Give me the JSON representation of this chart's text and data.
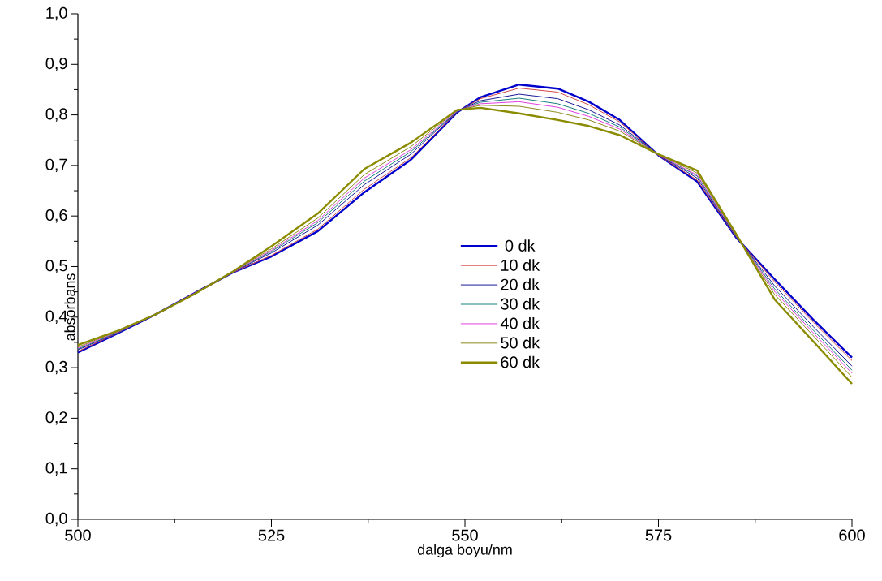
{
  "chart_data": {
    "type": "line",
    "xlabel": "dalga boyu/nm",
    "ylabel": "absorbans",
    "x": [
      500,
      505,
      510,
      515,
      520,
      525,
      531,
      537,
      543,
      549,
      552,
      557,
      562,
      566,
      570,
      575,
      580,
      585,
      590,
      595,
      600
    ],
    "xlim": [
      500,
      600
    ],
    "xticks": [
      500,
      525,
      550,
      575,
      600
    ],
    "ylim": [
      0,
      1
    ],
    "yticks": [
      {
        "value": 0,
        "label": "0,0"
      },
      {
        "value": 0.1,
        "label": "0,1"
      },
      {
        "value": 0.2,
        "label": "0,2"
      },
      {
        "value": 0.3,
        "label": "0,3"
      },
      {
        "value": 0.4,
        "label": "0,4"
      },
      {
        "value": 0.5,
        "label": "0,5"
      },
      {
        "value": 0.6,
        "label": "0,6"
      },
      {
        "value": 0.7,
        "label": "0,7"
      },
      {
        "value": 0.8,
        "label": "0,8"
      },
      {
        "value": 0.9,
        "label": "0,9"
      },
      {
        "value": 1,
        "label": "1,0"
      }
    ],
    "grid": false,
    "legend": "center",
    "marker": "none",
    "line_style": "solid",
    "series": [
      {
        "name": "0 dk",
        "color": "#0000cc",
        "values": [
          0.33,
          0.367,
          0.405,
          0.447,
          0.488,
          0.52,
          0.57,
          0.647,
          0.711,
          0.805,
          0.835,
          0.86,
          0.852,
          0.826,
          0.79,
          0.72,
          0.668,
          0.558,
          0.475,
          0.395,
          0.32
        ]
      },
      {
        "name": "10 dk",
        "color": "#d04848",
        "values": [
          0.332,
          0.368,
          0.405,
          0.447,
          0.488,
          0.522,
          0.574,
          0.653,
          0.715,
          0.806,
          0.832,
          0.853,
          0.845,
          0.82,
          0.786,
          0.72,
          0.671,
          0.559,
          0.47,
          0.39,
          0.314
        ]
      },
      {
        "name": "20 dk",
        "color": "#1a1a99",
        "values": [
          0.335,
          0.369,
          0.405,
          0.446,
          0.489,
          0.527,
          0.582,
          0.662,
          0.722,
          0.807,
          0.828,
          0.841,
          0.832,
          0.81,
          0.78,
          0.721,
          0.675,
          0.56,
          0.462,
          0.381,
          0.303
        ]
      },
      {
        "name": "30 dk",
        "color": "#1a8080",
        "values": [
          0.337,
          0.369,
          0.405,
          0.446,
          0.489,
          0.53,
          0.587,
          0.669,
          0.727,
          0.807,
          0.825,
          0.833,
          0.822,
          0.803,
          0.776,
          0.721,
          0.679,
          0.561,
          0.456,
          0.374,
          0.295
        ]
      },
      {
        "name": "40 dk",
        "color": "#e040e0",
        "values": [
          0.339,
          0.37,
          0.405,
          0.446,
          0.489,
          0.532,
          0.591,
          0.675,
          0.731,
          0.808,
          0.822,
          0.826,
          0.815,
          0.797,
          0.772,
          0.721,
          0.681,
          0.562,
          0.451,
          0.369,
          0.289
        ]
      },
      {
        "name": "50 dk",
        "color": "#8a8a1a",
        "values": [
          0.341,
          0.371,
          0.405,
          0.445,
          0.49,
          0.535,
          0.596,
          0.682,
          0.737,
          0.809,
          0.819,
          0.817,
          0.805,
          0.79,
          0.768,
          0.722,
          0.685,
          0.563,
          0.445,
          0.363,
          0.281
        ]
      },
      {
        "name": "60 dk",
        "color": "#8b8b00",
        "values": [
          0.345,
          0.372,
          0.405,
          0.445,
          0.49,
          0.54,
          0.605,
          0.693,
          0.745,
          0.81,
          0.814,
          0.803,
          0.79,
          0.778,
          0.76,
          0.722,
          0.69,
          0.565,
          0.435,
          0.352,
          0.268
        ]
      }
    ]
  }
}
